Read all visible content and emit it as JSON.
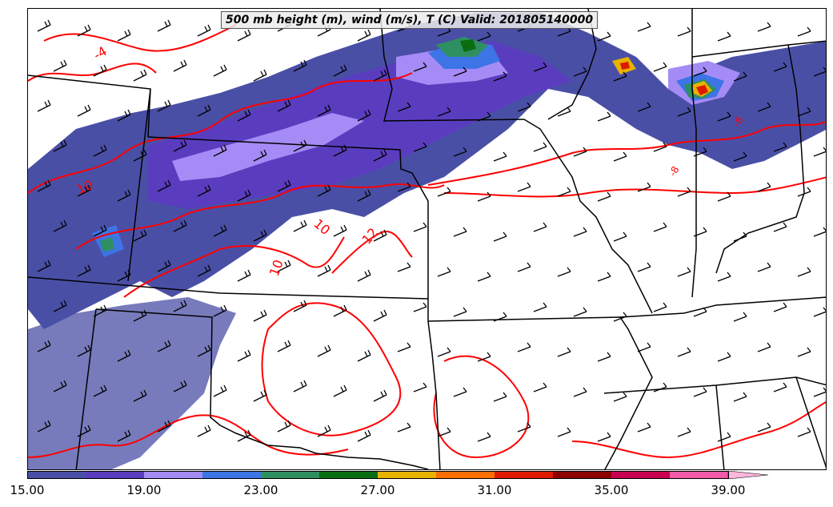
{
  "title": "500 mb height (m), wind (m/s), T (C) Valid: 201805140000",
  "contour_labels": [
    "-4",
    "10",
    "10",
    "10",
    "12",
    "-8",
    "-8"
  ],
  "colorbar": {
    "colors": [
      "#4a4fa6",
      "#5a3dbf",
      "#a58bf5",
      "#3d74e6",
      "#2e9060",
      "#0a6d12",
      "#e7b200",
      "#ff6e00",
      "#dd1a00",
      "#8e0000",
      "#c8004f",
      "#f25aa8",
      "#ffb7dc"
    ],
    "tick_labels": [
      "15.00",
      "19.00",
      "23.00",
      "27.00",
      "31.00",
      "35.00",
      "39.00"
    ]
  },
  "legend_colors": {
    "contour": "#ff0000",
    "borders": "#000000"
  }
}
